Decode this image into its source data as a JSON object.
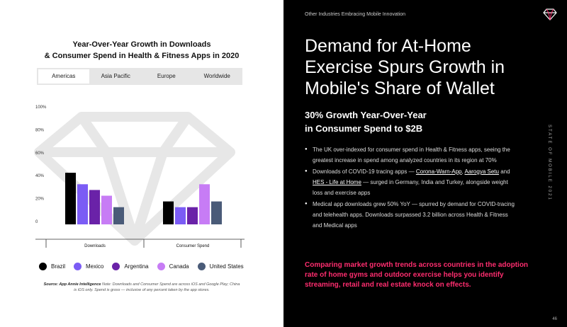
{
  "chart_title": {
    "line1": "Year-Over-Year Growth in Downloads",
    "line2": "& Consumer Spend in Health & Fitness Apps in 2020"
  },
  "tabs": [
    "Americas",
    "Asia Pacific",
    "Europe",
    "Worldwide"
  ],
  "chart_data": {
    "type": "bar",
    "categories": [
      "Downloads",
      "Consumer Spend"
    ],
    "series": [
      {
        "name": "Brazil",
        "color": "#000000",
        "values": [
          45,
          20
        ]
      },
      {
        "name": "Mexico",
        "color": "#7b5cf5",
        "values": [
          35,
          15
        ]
      },
      {
        "name": "Argentina",
        "color": "#6a22a8",
        "values": [
          30,
          15
        ]
      },
      {
        "name": "Canada",
        "color": "#c77cf5",
        "values": [
          25,
          35
        ]
      },
      {
        "name": "United States",
        "color": "#4a5b78",
        "values": [
          15,
          20
        ]
      }
    ],
    "yticks": [
      "0",
      "20%",
      "40%",
      "60%",
      "80%",
      "100%"
    ],
    "ylim": [
      0,
      100
    ]
  },
  "source": {
    "bold": "Source: App Annie Intelligence",
    "text": " Note: Downloads and Consumer Spend are across iOS and Google Play; China is iOS only. Spend is gross — inclusive of any percent taken by the app stores."
  },
  "eyebrow": "Other Industries Embracing Mobile Innovation",
  "headline": "Demand for At-Home Exercise Spurs Growth in Mobile's Share of Wallet",
  "subhead": {
    "line1": "30% Growth Year-Over-Year",
    "line2": "in Consumer Spend to $2B"
  },
  "bullets": {
    "b1": "The UK over-indexed for consumer spend in Health & Fitness apps, seeing the greatest increase in spend among analyzed countries in its region at 70%",
    "b2_pre": "Downloads of COVID-19 tracing apps — ",
    "b2_link1": "Corona-Warn-App",
    "b2_sep1": ", ",
    "b2_link2": "Aarogya Setu",
    "b2_sep2": " and ",
    "b2_link3": "HES - Life at Home",
    "b2_post": " — surged in Germany, India and Turkey, alongside weight loss and exercise apps",
    "b3": "Medical app downloads grew 50% YoY — spurred by demand for COVID-tracing and telehealth apps. Downloads surpassed 3.2 billion across Health & Fitness and Medical apps"
  },
  "highlight": "Comparing market growth trends across countries in the adoption rate of home gyms and outdoor exercise helps you identify streaming, retail and real estate knock on effects.",
  "side_label": "STATE OF MOBILE 2021",
  "page_number": "46"
}
